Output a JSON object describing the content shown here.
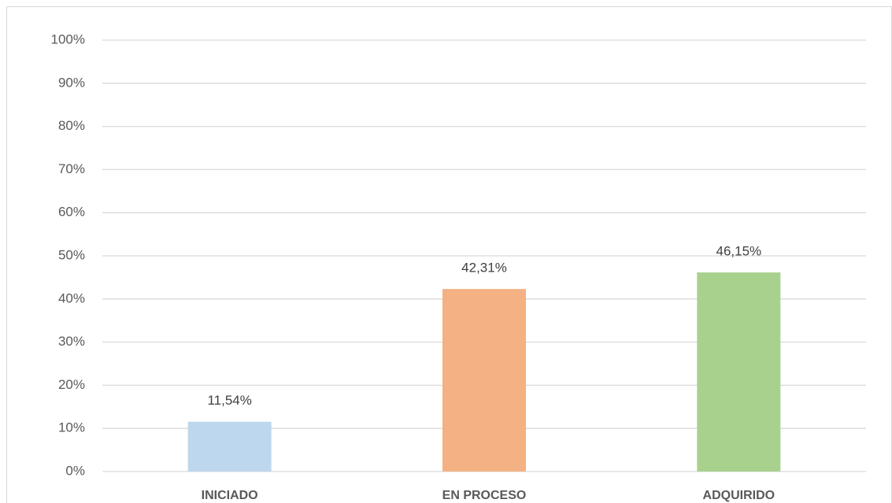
{
  "chart_data": {
    "type": "bar",
    "categories": [
      "INICIADO",
      "EN PROCESO",
      "ADQUIRIDO"
    ],
    "values": [
      11.54,
      42.31,
      46.15
    ],
    "value_labels": [
      "11,54%",
      "42,31%",
      "46,15%"
    ],
    "colors": [
      "#bdd7ee",
      "#f4b183",
      "#a9d18e"
    ],
    "ylim": [
      0,
      100
    ],
    "yticks": [
      {
        "value": 0,
        "label": "0%"
      },
      {
        "value": 10,
        "label": "10%"
      },
      {
        "value": 20,
        "label": "20%"
      },
      {
        "value": 30,
        "label": "30%"
      },
      {
        "value": 40,
        "label": "40%"
      },
      {
        "value": 50,
        "label": "50%"
      },
      {
        "value": 60,
        "label": "60%"
      },
      {
        "value": 70,
        "label": "70%"
      },
      {
        "value": 80,
        "label": "80%"
      },
      {
        "value": 90,
        "label": "90%"
      },
      {
        "value": 100,
        "label": "100%"
      }
    ],
    "grid": true
  }
}
